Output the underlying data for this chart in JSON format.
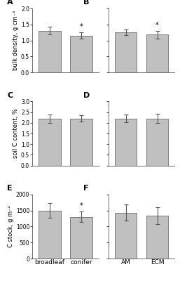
{
  "panels": [
    {
      "label": "A",
      "ylabel": "bulk density, g cm⁻³",
      "ylim": [
        0.0,
        2.0
      ],
      "yticks": [
        0.0,
        0.5,
        1.0,
        1.5,
        2.0
      ],
      "categories": [
        "broadleaf",
        "conifer"
      ],
      "values": [
        1.3,
        1.15
      ],
      "errors": [
        0.12,
        0.1
      ],
      "significant": true,
      "sig_bar_idx": 1,
      "show_xlabel": false
    },
    {
      "label": "B",
      "ylabel": "",
      "ylim": [
        0.0,
        2.0
      ],
      "yticks": [
        0.0,
        0.5,
        1.0,
        1.5,
        2.0
      ],
      "categories": [
        "AM",
        "ECM"
      ],
      "values": [
        1.25,
        1.18
      ],
      "errors": [
        0.09,
        0.12
      ],
      "significant": true,
      "sig_bar_idx": 1,
      "show_xlabel": false
    },
    {
      "label": "C",
      "ylabel": "soil C content, %",
      "ylim": [
        0.0,
        3.0
      ],
      "yticks": [
        0.0,
        0.5,
        1.0,
        1.5,
        2.0,
        2.5,
        3.0
      ],
      "categories": [
        "broadleaf",
        "conifer"
      ],
      "values": [
        2.2,
        2.2
      ],
      "errors": [
        0.2,
        0.15
      ],
      "significant": false,
      "sig_bar_idx": null,
      "show_xlabel": false
    },
    {
      "label": "D",
      "ylabel": "",
      "ylim": [
        0.0,
        3.0
      ],
      "yticks": [
        0.0,
        0.5,
        1.0,
        1.5,
        2.0,
        2.5,
        3.0
      ],
      "categories": [
        "AM",
        "ECM"
      ],
      "values": [
        2.2,
        2.2
      ],
      "errors": [
        0.18,
        0.22
      ],
      "significant": false,
      "sig_bar_idx": null,
      "show_xlabel": false
    },
    {
      "label": "E",
      "ylabel": "C stock, g m⁻²",
      "ylim": [
        0,
        2000
      ],
      "yticks": [
        0,
        500,
        1000,
        1500,
        2000
      ],
      "categories": [
        "broadleaf",
        "conifer"
      ],
      "values": [
        1500,
        1300
      ],
      "errors": [
        230,
        170
      ],
      "significant": true,
      "sig_bar_idx": 1,
      "show_xlabel": true
    },
    {
      "label": "F",
      "ylabel": "",
      "ylim": [
        0,
        2000
      ],
      "yticks": [
        0,
        500,
        1000,
        1500,
        2000
      ],
      "categories": [
        "AM",
        "ECM"
      ],
      "values": [
        1430,
        1330
      ],
      "errors": [
        250,
        260
      ],
      "significant": false,
      "sig_bar_idx": null,
      "show_xlabel": true
    }
  ],
  "bar_color": "#c0c0c0",
  "bar_edge_color": "#555555",
  "error_color": "#555555",
  "sig_color": "#000000",
  "background_color": "#ffffff",
  "label_fontsize": 6.5,
  "tick_fontsize": 5.5,
  "ylabel_fontsize": 6.0
}
